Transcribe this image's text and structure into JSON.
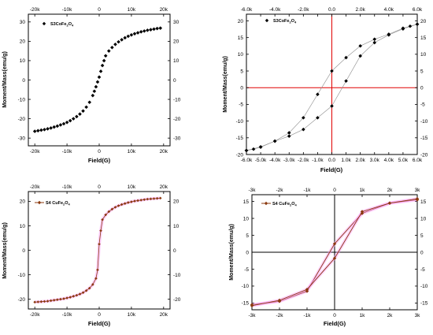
{
  "chart_data": [
    {
      "type": "scatter",
      "legend": {
        "label": "S3CoFe",
        "sub": "2",
        "after": "O",
        "sub2": "4",
        "position": "top-left",
        "marker": "diamond",
        "color": "#000000"
      },
      "xlabel": "Field(G)",
      "ylabel": "Moment/Mass(emu/g)",
      "xlim": [
        -22000,
        22000
      ],
      "ylim": [
        -34,
        34
      ],
      "xticks": [
        -20000,
        -10000,
        0,
        10000,
        20000
      ],
      "xtick_labels": [
        "-20k",
        "-10k",
        "0",
        "10k",
        "20k"
      ],
      "yticks": [
        -30,
        -20,
        -10,
        0,
        10,
        20,
        30
      ],
      "ytick_labels": [
        "-30",
        "-20",
        "-10",
        "0",
        "10",
        "20",
        "30"
      ],
      "grid": false,
      "series": [
        {
          "color": "#000000",
          "marker": "diamond",
          "line": false,
          "x": [
            -20000,
            -19000,
            -18000,
            -17000,
            -16000,
            -15000,
            -14000,
            -13000,
            -12000,
            -11000,
            -10000,
            -9000,
            -8000,
            -7000,
            -6000,
            -5000,
            -4000,
            -3000,
            -2000,
            -1500,
            -1000,
            -500,
            0,
            500,
            1000,
            1500,
            2000,
            3000,
            4000,
            5000,
            6000,
            7000,
            8000,
            9000,
            10000,
            11000,
            12000,
            13000,
            14000,
            15000,
            16000,
            17000,
            18000,
            19000
          ],
          "y": [
            -26.5,
            -26.2,
            -25.9,
            -25.6,
            -25.2,
            -24.8,
            -24.3,
            -23.8,
            -23.2,
            -22.6,
            -21.9,
            -21.0,
            -20.0,
            -18.9,
            -17.6,
            -16.0,
            -14.0,
            -11.5,
            -8.0,
            -5.8,
            -3.5,
            -1.0,
            1.5,
            4.5,
            7.5,
            10.0,
            12.5,
            15.0,
            16.8,
            18.4,
            19.7,
            20.8,
            21.8,
            22.6,
            23.3,
            23.9,
            24.4,
            24.9,
            25.3,
            25.7,
            26.0,
            26.3,
            26.6,
            26.8
          ]
        }
      ]
    },
    {
      "type": "line",
      "legend": {
        "label": "S3CoFe",
        "sub": "2",
        "after": "O",
        "sub2": "4",
        "position": "top-left",
        "marker": "diamond",
        "color": "#000000"
      },
      "xlabel": "Field(G)",
      "ylabel": "Moment/Mass(emu/g)",
      "xlim": [
        -6000,
        6000
      ],
      "ylim": [
        -20,
        22
      ],
      "xticks": [
        -6000,
        -5000,
        -4000,
        -3000,
        -2000,
        -1000,
        0,
        1000,
        2000,
        3000,
        4000,
        5000,
        6000
      ],
      "xtick_labels": [
        "-6.0k",
        "-5.0k",
        "-4.0k",
        "-3.0k",
        "-2.0k",
        "-1.0k",
        "0.0",
        "1.0k",
        "2.0k",
        "3.0k",
        "4.0k",
        "5.0k",
        "6.0k"
      ],
      "top_xtick_labels": [
        "-6.0k",
        "-4.0k",
        "-2.0k",
        "0.0",
        "2.0k",
        "4.0k",
        "6.0k"
      ],
      "top_xticks": [
        -6000,
        -4000,
        -2000,
        0,
        2000,
        4000,
        6000
      ],
      "yticks": [
        -20,
        -15,
        -10,
        -5,
        0,
        5,
        10,
        15,
        20
      ],
      "ytick_labels": [
        "-20",
        "-15",
        "-10",
        "-5",
        "0",
        "5",
        "10",
        "15",
        "20"
      ],
      "axis_lines_color": "#e00000",
      "grid": false,
      "series": [
        {
          "color": "#000000",
          "marker": "diamond",
          "line": true,
          "line_color": "#909090",
          "x": [
            6000,
            5500,
            5000,
            4000,
            3000,
            2000,
            1000,
            0,
            -1000,
            -2000,
            -3000,
            -4000,
            -5000,
            -6000
          ],
          "y": [
            19.0,
            18.4,
            17.8,
            16.0,
            14.5,
            12.5,
            9.0,
            5.0,
            -2.0,
            -9.0,
            -13.5,
            -16.0,
            -17.7,
            -18.8
          ]
        },
        {
          "color": "#000000",
          "marker": "diamond",
          "line": true,
          "line_color": "#909090",
          "x": [
            -6000,
            -5500,
            -5000,
            -4000,
            -3000,
            -2000,
            -1000,
            0,
            1000,
            2000,
            3000,
            4000,
            5000,
            6000
          ],
          "y": [
            -18.8,
            -18.4,
            -17.8,
            -16.0,
            -14.5,
            -12.5,
            -9.0,
            -5.5,
            2.0,
            9.5,
            13.5,
            15.8,
            17.6,
            19.0
          ]
        }
      ]
    },
    {
      "type": "line",
      "legend": {
        "label": "S4 CuFe",
        "sub": "2",
        "after": "O",
        "sub2": "4",
        "position": "top-left",
        "marker": "diamond",
        "color": "#8b3a0f"
      },
      "xlabel": "Field(G)",
      "ylabel": "Moment/Mass(emu/g)",
      "xlim": [
        -22000,
        22000
      ],
      "ylim": [
        -24,
        24
      ],
      "xticks": [
        -20000,
        -10000,
        0,
        10000,
        20000
      ],
      "xtick_labels": [
        "-20k",
        "-10k",
        "0",
        "10k",
        "20k"
      ],
      "yticks": [
        -20,
        -10,
        0,
        10,
        20
      ],
      "ytick_labels": [
        "-20",
        "-10",
        "0",
        "10",
        "20"
      ],
      "grid": false,
      "series": [
        {
          "color": "#8b3a0f",
          "marker": "diamond",
          "line": true,
          "line_color": "#8b3a0f",
          "halo_color": "#ff99ff",
          "x": [
            -20000,
            -19000,
            -18000,
            -17000,
            -16000,
            -15000,
            -14000,
            -13000,
            -12000,
            -11000,
            -10000,
            -9000,
            -8000,
            -7000,
            -6000,
            -5000,
            -4000,
            -3000,
            -2000,
            -1000,
            -500,
            0,
            500,
            1000,
            2000,
            3000,
            4000,
            5000,
            6000,
            7000,
            8000,
            9000,
            10000,
            11000,
            12000,
            13000,
            14000,
            15000,
            16000,
            17000,
            18000,
            19000
          ],
          "y": [
            -21.2,
            -21.1,
            -21.0,
            -20.9,
            -20.8,
            -20.6,
            -20.4,
            -20.2,
            -20.0,
            -19.8,
            -19.5,
            -19.2,
            -18.8,
            -18.4,
            -17.9,
            -17.3,
            -16.5,
            -15.5,
            -14.0,
            -11.5,
            -8.0,
            2.5,
            8.0,
            12.5,
            14.5,
            15.8,
            16.8,
            17.6,
            18.2,
            18.7,
            19.1,
            19.5,
            19.8,
            20.1,
            20.3,
            20.5,
            20.7,
            20.9,
            21.0,
            21.1,
            21.2,
            21.3
          ]
        }
      ]
    },
    {
      "type": "line",
      "legend": {
        "label": "S4 CuFe",
        "sub": "2",
        "after": "O",
        "sub2": "4",
        "position": "top-left",
        "marker": "diamond",
        "color": "#8b3a0f"
      },
      "xlabel": "Field(G)",
      "ylabel": "Moment/Mass(emu/g)",
      "xlim": [
        -3000,
        3000
      ],
      "ylim": [
        -17,
        17
      ],
      "xticks": [
        -3000,
        -2000,
        -1000,
        0,
        1000,
        2000,
        3000
      ],
      "xtick_labels": [
        "-3k",
        "-2k",
        "-1k",
        "0",
        "1k",
        "2k",
        "3k"
      ],
      "yticks": [
        -15,
        -10,
        -5,
        0,
        5,
        10,
        15
      ],
      "ytick_labels": [
        "-15",
        "-10",
        "-5",
        "0",
        "5",
        "10",
        "15"
      ],
      "axis_lines_color": "#000000",
      "grid": false,
      "series": [
        {
          "color": "#8b3a0f",
          "marker": "diamond",
          "line": true,
          "line_color": "#8b3a0f",
          "halo_color": "#ff99ff",
          "x": [
            -3000,
            -2000,
            -1000,
            0,
            1000,
            2000,
            3000
          ],
          "y": [
            -15.5,
            -14.5,
            -11.5,
            2.5,
            11.5,
            14.5,
            15.5
          ]
        },
        {
          "color": "#8b3a0f",
          "marker": "diamond",
          "line": true,
          "line_color": "#8b3a0f",
          "halo_color": "#ff99ff",
          "x": [
            3000,
            2000,
            1000,
            0,
            -1000,
            -2000,
            -3000
          ],
          "y": [
            15.8,
            14.5,
            12.0,
            -1.8,
            -11.0,
            -14.2,
            -15.8
          ]
        }
      ]
    }
  ]
}
